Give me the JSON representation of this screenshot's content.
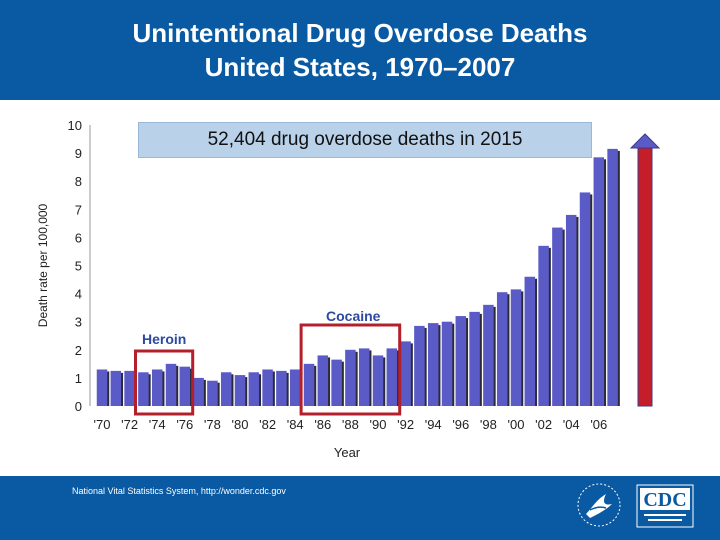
{
  "header": {
    "title_line1": "Unintentional Drug Overdose Deaths",
    "title_line2": "United States, 1970–2007"
  },
  "callout": "52,404 drug overdose deaths in 2015",
  "annotations": {
    "heroin": "Heroin",
    "cocaine": "Cocaine"
  },
  "footer": {
    "source": "National Vital Statistics System, http://wonder.cdc.gov"
  },
  "logos": {
    "hhs": "hhs-eagle-icon",
    "cdc": "CDC"
  },
  "colors": {
    "header_bg": "#0a5aa3",
    "bar": "#5b5bc8",
    "highlight_box": "#b3202c",
    "arrow_fill": "#c41e2a",
    "arrow_head": "#5b5bc8"
  },
  "chart_data": {
    "type": "bar",
    "xlabel": "Year",
    "ylabel": "Death rate per 100,000",
    "ylim": [
      0,
      10
    ],
    "y_ticks": [
      "0",
      "1",
      "2",
      "3",
      "4",
      "5",
      "6",
      "7",
      "8",
      "9",
      "10"
    ],
    "x_tick_labels": [
      "'70",
      "'72",
      "'74",
      "'76",
      "'78",
      "'80",
      "'82",
      "'84",
      "'86",
      "'88",
      "'90",
      "'92",
      "'94",
      "'96",
      "'98",
      "'00",
      "'02",
      "'04",
      "'06"
    ],
    "categories": [
      1970,
      1971,
      1972,
      1973,
      1974,
      1975,
      1976,
      1977,
      1978,
      1979,
      1980,
      1981,
      1982,
      1983,
      1984,
      1985,
      1986,
      1987,
      1988,
      1989,
      1990,
      1991,
      1992,
      1993,
      1994,
      1995,
      1996,
      1997,
      1998,
      1999,
      2000,
      2001,
      2002,
      2003,
      2004,
      2005,
      2006,
      2007
    ],
    "values": [
      1.3,
      1.25,
      1.25,
      1.2,
      1.3,
      1.5,
      1.4,
      1.0,
      0.9,
      1.2,
      1.1,
      1.2,
      1.3,
      1.25,
      1.3,
      1.5,
      1.8,
      1.65,
      2.0,
      2.05,
      1.8,
      2.05,
      2.3,
      2.85,
      2.95,
      3.0,
      3.2,
      3.35,
      3.6,
      4.05,
      4.15,
      4.6,
      5.7,
      6.35,
      6.8,
      7.6,
      8.85,
      9.15
    ],
    "grid": false
  }
}
